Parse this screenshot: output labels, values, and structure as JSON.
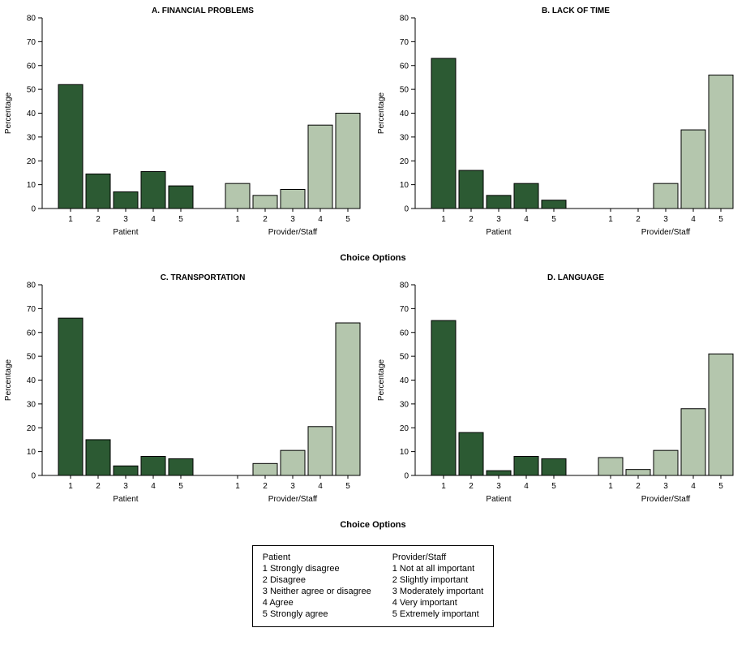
{
  "colors": {
    "patient": "#2c5a33",
    "provider": "#b4c6ad",
    "bar_stroke": "#000000",
    "axis": "#000000"
  },
  "row_xlabel": "Choice Options",
  "legend": {
    "columns": [
      {
        "heading": "Patient",
        "items": [
          "1 Strongly disagree",
          "2 Disagree",
          "3 Neither agree or disagree",
          "4 Agree",
          "5 Strongly agree"
        ]
      },
      {
        "heading": "Provider/Staff",
        "items": [
          "1 Not at all important",
          "2 Slightly important",
          "3 Moderately important",
          "4 Very important",
          "5 Extremely important"
        ]
      }
    ]
  },
  "chart_data": [
    {
      "type": "bar",
      "title": "A. FINANCIAL PROBLEMS",
      "ylabel": "Percentage",
      "xlabel": "Choice Options",
      "ylim": [
        0,
        80
      ],
      "yticks": [
        0,
        10,
        20,
        30,
        40,
        50,
        60,
        70,
        80
      ],
      "categories": [
        "1",
        "2",
        "3",
        "4",
        "5"
      ],
      "groups": [
        "Patient",
        "Provider/Staff"
      ],
      "series": [
        {
          "name": "Patient",
          "values": [
            52,
            14.5,
            7,
            15.5,
            9.5
          ]
        },
        {
          "name": "Provider/Staff",
          "values": [
            10.5,
            5.5,
            8,
            35,
            40
          ]
        }
      ]
    },
    {
      "type": "bar",
      "title": "B. LACK OF TIME",
      "ylabel": "Percentage",
      "xlabel": "Choice Options",
      "ylim": [
        0,
        80
      ],
      "yticks": [
        0,
        10,
        20,
        30,
        40,
        50,
        60,
        70,
        80
      ],
      "categories": [
        "1",
        "2",
        "3",
        "4",
        "5"
      ],
      "groups": [
        "Patient",
        "Provider/Staff"
      ],
      "series": [
        {
          "name": "Patient",
          "values": [
            63,
            16,
            5.5,
            10.5,
            3.5
          ]
        },
        {
          "name": "Provider/Staff",
          "values": [
            0,
            0,
            10.5,
            33,
            56
          ]
        }
      ]
    },
    {
      "type": "bar",
      "title": "C. TRANSPORTATION",
      "ylabel": "Percentage",
      "xlabel": "Choice Options",
      "ylim": [
        0,
        80
      ],
      "yticks": [
        0,
        10,
        20,
        30,
        40,
        50,
        60,
        70,
        80
      ],
      "categories": [
        "1",
        "2",
        "3",
        "4",
        "5"
      ],
      "groups": [
        "Patient",
        "Provider/Staff"
      ],
      "series": [
        {
          "name": "Patient",
          "values": [
            66,
            15,
            4,
            8,
            7
          ]
        },
        {
          "name": "Provider/Staff",
          "values": [
            0,
            5,
            10.5,
            20.5,
            64
          ]
        }
      ]
    },
    {
      "type": "bar",
      "title": "D. LANGUAGE",
      "ylabel": "Percentage",
      "xlabel": "Choice Options",
      "ylim": [
        0,
        80
      ],
      "yticks": [
        0,
        10,
        20,
        30,
        40,
        50,
        60,
        70,
        80
      ],
      "categories": [
        "1",
        "2",
        "3",
        "4",
        "5"
      ],
      "groups": [
        "Patient",
        "Provider/Staff"
      ],
      "series": [
        {
          "name": "Patient",
          "values": [
            65,
            18,
            2,
            8,
            7
          ]
        },
        {
          "name": "Provider/Staff",
          "values": [
            7.5,
            2.5,
            10.5,
            28,
            51
          ]
        }
      ]
    }
  ]
}
